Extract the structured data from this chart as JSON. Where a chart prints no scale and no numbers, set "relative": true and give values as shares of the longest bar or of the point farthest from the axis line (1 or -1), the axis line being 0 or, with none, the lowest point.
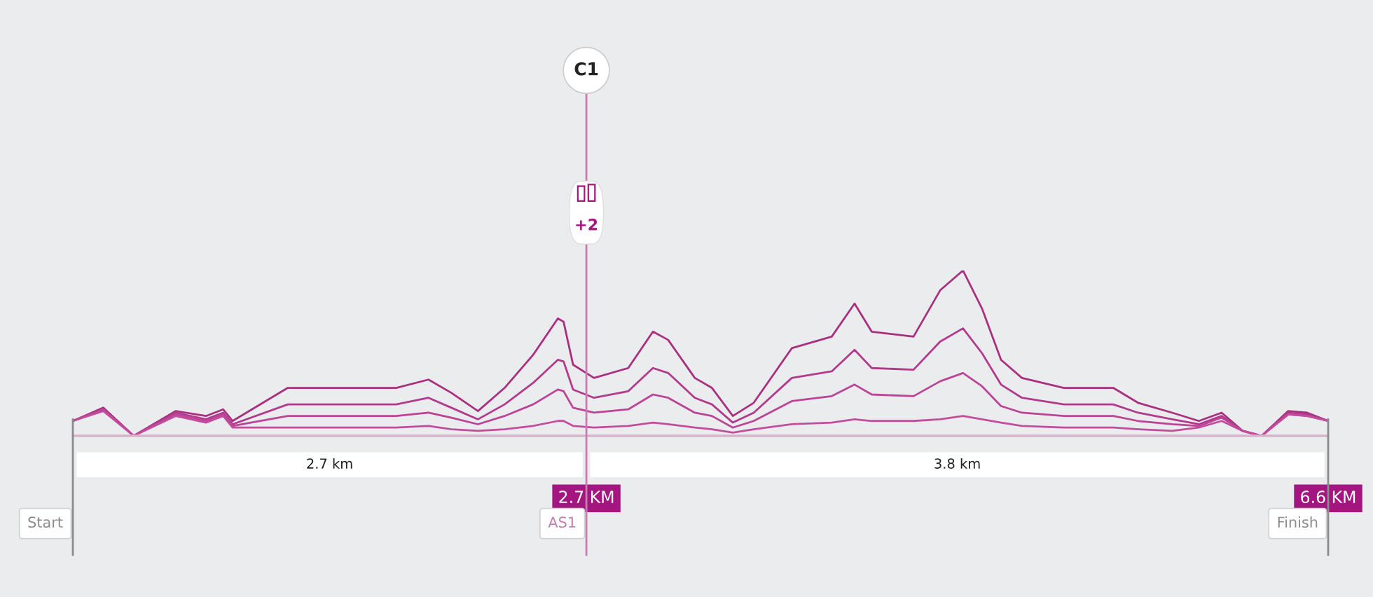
{
  "chart_data": {
    "type": "line",
    "relative": true,
    "x": [
      0,
      0.16,
      0.32,
      0.54,
      0.7,
      0.79,
      0.84,
      1.13,
      1.7,
      1.87,
      1.99,
      2.13,
      2.27,
      2.42,
      2.55,
      2.58,
      2.63,
      2.74,
      2.92,
      3.05,
      3.13,
      3.27,
      3.36,
      3.47,
      3.58,
      3.78,
      3.99,
      4.11,
      4.2,
      4.42,
      4.56,
      4.68,
      4.78,
      4.88,
      4.99,
      5.21,
      5.47,
      5.6,
      5.78,
      5.92,
      6.04,
      6.15,
      6.25,
      6.39,
      6.49,
      6.6
    ],
    "series": [
      {
        "color": "#a8307f",
        "values": [
          0.09,
          0.17,
          0.0,
          0.15,
          0.12,
          0.16,
          0.09,
          0.29,
          0.29,
          0.34,
          0.26,
          0.15,
          0.29,
          0.49,
          0.71,
          0.69,
          0.43,
          0.35,
          0.41,
          0.63,
          0.58,
          0.35,
          0.29,
          0.12,
          0.2,
          0.53,
          0.6,
          0.8,
          0.63,
          0.6,
          0.88,
          1.0,
          0.77,
          0.46,
          0.35,
          0.29,
          0.29,
          0.2,
          0.14,
          0.09,
          0.14,
          0.03,
          0.0,
          0.15,
          0.14,
          0.09
        ]
      },
      {
        "color": "#b23a8c",
        "values": [
          0.09,
          0.16,
          0.0,
          0.14,
          0.1,
          0.14,
          0.07,
          0.19,
          0.19,
          0.23,
          0.17,
          0.1,
          0.19,
          0.32,
          0.46,
          0.45,
          0.28,
          0.23,
          0.27,
          0.41,
          0.38,
          0.23,
          0.19,
          0.08,
          0.14,
          0.35,
          0.39,
          0.52,
          0.41,
          0.4,
          0.57,
          0.65,
          0.5,
          0.31,
          0.23,
          0.19,
          0.19,
          0.14,
          0.1,
          0.07,
          0.12,
          0.03,
          0.0,
          0.14,
          0.13,
          0.09
        ]
      },
      {
        "color": "#bb4496",
        "values": [
          0.09,
          0.16,
          0.0,
          0.13,
          0.09,
          0.13,
          0.06,
          0.12,
          0.12,
          0.14,
          0.11,
          0.07,
          0.12,
          0.19,
          0.28,
          0.27,
          0.17,
          0.14,
          0.16,
          0.25,
          0.23,
          0.14,
          0.12,
          0.05,
          0.09,
          0.21,
          0.24,
          0.31,
          0.25,
          0.24,
          0.33,
          0.38,
          0.3,
          0.18,
          0.14,
          0.12,
          0.12,
          0.09,
          0.07,
          0.06,
          0.11,
          0.03,
          0.0,
          0.13,
          0.12,
          0.09
        ]
      },
      {
        "color": "#c24d9c",
        "values": [
          0.09,
          0.15,
          0.0,
          0.12,
          0.08,
          0.12,
          0.05,
          0.05,
          0.05,
          0.06,
          0.04,
          0.03,
          0.04,
          0.06,
          0.09,
          0.09,
          0.06,
          0.05,
          0.06,
          0.08,
          0.07,
          0.05,
          0.04,
          0.02,
          0.04,
          0.07,
          0.08,
          0.1,
          0.09,
          0.09,
          0.1,
          0.12,
          0.1,
          0.08,
          0.06,
          0.05,
          0.05,
          0.04,
          0.03,
          0.05,
          0.09,
          0.03,
          0.0,
          0.13,
          0.12,
          0.09
        ]
      }
    ],
    "xlim": [
      0,
      6.6
    ],
    "xticks": [
      {
        "value": 2.7,
        "label": "2.7 KM"
      },
      {
        "value": 6.6,
        "label": "6.6 KM"
      }
    ],
    "ref_lines": [
      {
        "axis": "x",
        "value": 0,
        "label": "Start",
        "color": "#8c8c8c"
      },
      {
        "axis": "x",
        "value": 2.7,
        "label": "AS1",
        "color": "#c77db0"
      },
      {
        "axis": "x",
        "value": 6.6,
        "label": "Finish",
        "color": "#8c8c8c"
      }
    ],
    "annotations": [
      "2.7 km",
      "3.8 km",
      "C1",
      "+2"
    ],
    "legend": false
  }
}
